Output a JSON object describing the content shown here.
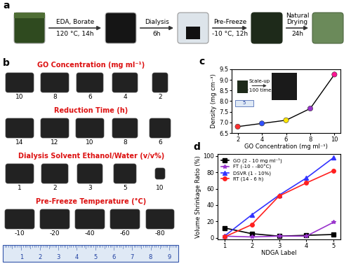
{
  "panel_a": {
    "label": "a",
    "steps": [
      {
        "above": [
          "EDA, Borate"
        ],
        "below": "120 °C, 14h"
      },
      {
        "above": [
          "Dialysis"
        ],
        "below": "6h"
      },
      {
        "above": [
          "Pre-Freeze"
        ],
        "below": "-10 °C, 12h"
      },
      {
        "above": [
          "Natural",
          "Drying"
        ],
        "below": "24h"
      }
    ]
  },
  "panel_b": {
    "label": "b",
    "rows": [
      {
        "title": "GO Concentration (mg ml⁻¹)",
        "labels": [
          "10",
          "8",
          "6",
          "4",
          "2"
        ]
      },
      {
        "title": "Reduction Time (h)",
        "labels": [
          "14",
          "12",
          "10",
          "8",
          "6"
        ]
      },
      {
        "title": "Dialysis Solvent Ethanol/Water (v/v%)",
        "labels": [
          "1",
          "2",
          "3",
          "5",
          "10"
        ]
      },
      {
        "title": "Pre-Freeze Temperature (°C)",
        "labels": [
          "-10",
          "-20",
          "-40",
          "-60",
          "-80"
        ]
      }
    ],
    "ruler": [
      "1",
      "2",
      "3",
      "4",
      "5",
      "6",
      "7",
      "8",
      "9"
    ]
  },
  "chart_data": [
    {
      "type": "line",
      "title": "c",
      "x_label": "GO Concentration (mg ml⁻¹)",
      "y_label": "Density (mg cm⁻³)",
      "x": [
        2,
        4,
        6,
        8,
        10
      ],
      "values": [
        6.8,
        6.95,
        7.1,
        7.65,
        9.25
      ],
      "color": "#000000",
      "colors": [
        "#ff3030",
        "#3050ff",
        "#ffe600",
        "#9933cc",
        "#ff1493"
      ],
      "marker": "circle",
      "line_style": "solid",
      "xlim": [
        1.5,
        10.5
      ],
      "xticks": [
        2,
        4,
        6,
        8,
        10
      ],
      "ylim": [
        6.5,
        9.5
      ],
      "yticks": [
        6.5,
        {
          "value": 7,
          "label": "7.0"
        },
        7.5,
        {
          "value": 8,
          "label": "8.0"
        },
        8.5,
        {
          "value": 9,
          "label": "9.0"
        },
        9.5
      ],
      "annotations": [
        "Scale-up",
        "~100 times",
        "5"
      ],
      "grid": false
    },
    {
      "type": "line",
      "title": "d",
      "x_label": "NDGA Label",
      "y_label": "Volume Shrinkage Ratio (%)",
      "x": [
        1,
        2,
        3,
        4,
        5
      ],
      "series": [
        {
          "name": "GO (2 - 10 mg ml⁻¹)",
          "color": "#000000",
          "marker": "square",
          "values": [
            12,
            5,
            2,
            3,
            4
          ]
        },
        {
          "name": "FT (-10 - -80°C)",
          "color": "#9933cc",
          "marker": "star",
          "values": [
            2,
            1,
            2,
            2,
            19
          ]
        },
        {
          "name": "DSVR (1 - 10%)",
          "color": "#3333ff",
          "marker": "triangle",
          "values": [
            2,
            28,
            52,
            73,
            98
          ]
        },
        {
          "name": "RT (14 - 6 h)",
          "color": "#ff2020",
          "marker": "circle",
          "values": [
            1,
            16,
            51,
            67,
            82
          ]
        }
      ],
      "xlim": [
        0.75,
        5.25
      ],
      "xticks": [
        1,
        2,
        3,
        4,
        5
      ],
      "ylim": [
        -2,
        102
      ],
      "yticks": [
        0,
        20,
        40,
        60,
        80,
        100
      ],
      "legend": "upper left",
      "line_style": "solid",
      "grid": false
    }
  ]
}
